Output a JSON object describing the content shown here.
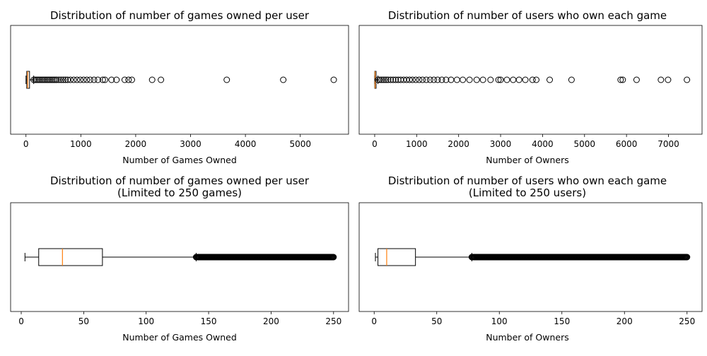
{
  "chart_data": [
    {
      "type": "boxplot",
      "orientation": "horizontal",
      "title": "Distribution of number of games owned per user",
      "xlabel": "Number of Games Owned",
      "xlim": [
        -280,
        5880
      ],
      "xticks": [
        0,
        1000,
        2000,
        3000,
        4000,
        5000
      ],
      "box": {
        "whisker_low": 1,
        "q1": 14,
        "median": 32,
        "q3": 65,
        "whisker_high": 141
      },
      "outliers": [
        141,
        170,
        200,
        230,
        260,
        290,
        320,
        350,
        380,
        410,
        440,
        470,
        500,
        530,
        560,
        600,
        640,
        680,
        720,
        760,
        810,
        870,
        930,
        990,
        1050,
        1110,
        1170,
        1240,
        1310,
        1400,
        1440,
        1560,
        1650,
        1800,
        1870,
        1930,
        2300,
        2460,
        3660,
        4690,
        5610
      ]
    },
    {
      "type": "boxplot",
      "orientation": "horizontal",
      "title": "Distribution of number of users who own each game",
      "xlabel": "Number of Owners",
      "xlim": [
        -370,
        7800
      ],
      "xticks": [
        0,
        1000,
        2000,
        3000,
        4000,
        5000,
        6000,
        7000
      ],
      "box": {
        "whisker_low": 1,
        "q1": 3,
        "median": 10,
        "q3": 33,
        "whisker_high": 78
      },
      "outliers": [
        78,
        120,
        170,
        220,
        270,
        320,
        380,
        440,
        500,
        560,
        620,
        690,
        760,
        830,
        900,
        980,
        1060,
        1140,
        1230,
        1320,
        1410,
        1500,
        1600,
        1700,
        1820,
        1960,
        2100,
        2260,
        2430,
        2580,
        2760,
        2950,
        3000,
        3150,
        3300,
        3440,
        3590,
        3760,
        3850,
        4170,
        4690,
        5860,
        5910,
        6240,
        6820,
        6990,
        7440
      ]
    },
    {
      "type": "boxplot",
      "orientation": "horizontal",
      "title": "Distribution of number of games owned per user",
      "subtitle": "(Limited to 250 games)",
      "xlabel": "Number of Games Owned",
      "xlim": [
        -8.5,
        262
      ],
      "xticks": [
        0,
        50,
        100,
        150,
        200,
        250
      ],
      "box": {
        "whisker_low": 3,
        "q1": 14,
        "median": 33,
        "q3": 65,
        "whisker_high": 140
      },
      "outliers_range": [
        140,
        250
      ]
    },
    {
      "type": "boxplot",
      "orientation": "horizontal",
      "title": "Distribution of number of users who own each game",
      "subtitle": "(Limited to 250 users)",
      "xlabel": "Number of Owners",
      "xlim": [
        -12,
        262
      ],
      "xticks": [
        0,
        50,
        100,
        150,
        200,
        250
      ],
      "box": {
        "whisker_low": 1,
        "q1": 3,
        "median": 10,
        "q3": 33,
        "whisker_high": 78
      },
      "outliers_range": [
        78,
        250
      ]
    }
  ]
}
